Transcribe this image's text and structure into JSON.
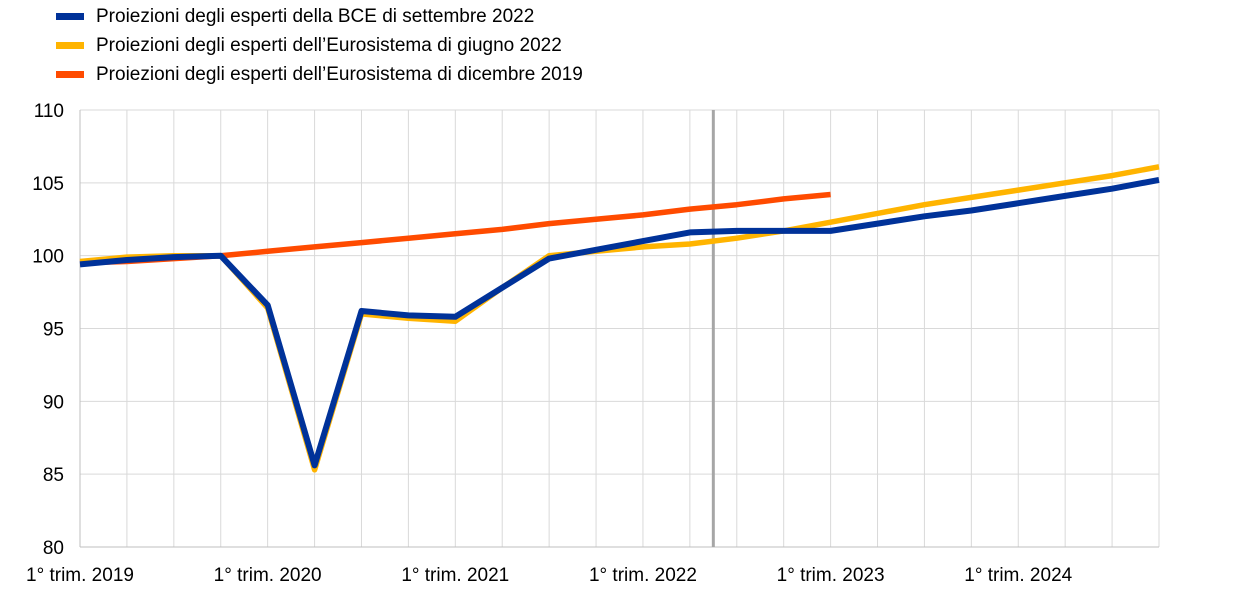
{
  "chart_data": {
    "type": "line",
    "title": "",
    "xlabel": "",
    "ylabel": "",
    "ylim": [
      80,
      110
    ],
    "yticks": [
      80,
      85,
      90,
      95,
      100,
      105,
      110
    ],
    "x_tick_labels": [
      "1° trim. 2019",
      "1° trim. 2020",
      "1° trim. 2021",
      "1° trim. 2022",
      "1° trim. 2023",
      "1° trim. 2024"
    ],
    "periods": [
      "2019Q1",
      "2019Q2",
      "2019Q3",
      "2019Q4",
      "2020Q1",
      "2020Q2",
      "2020Q3",
      "2020Q4",
      "2021Q1",
      "2021Q2",
      "2021Q3",
      "2021Q4",
      "2022Q1",
      "2022Q2",
      "2022Q3",
      "2022Q4",
      "2023Q1",
      "2023Q2",
      "2023Q3",
      "2023Q4",
      "2024Q1",
      "2024Q2",
      "2024Q3",
      "2024Q4"
    ],
    "vertical_marker_period": "2022Q3",
    "grid": true,
    "legend_position": "top-left",
    "series": [
      {
        "name": "Proiezioni degli esperti della BCE di settembre 2022",
        "color": "#003299",
        "values": [
          99.4,
          99.7,
          99.9,
          100.0,
          96.6,
          85.6,
          96.2,
          95.9,
          95.8,
          97.8,
          99.8,
          100.4,
          101.0,
          101.6,
          101.7,
          101.7,
          101.7,
          102.2,
          102.7,
          103.1,
          103.6,
          104.1,
          104.6,
          105.2
        ]
      },
      {
        "name": "Proiezioni degli esperti dell’Eurosistema di giugno 2022",
        "color": "#FFB400",
        "values": [
          99.6,
          99.9,
          100.0,
          100.0,
          96.4,
          85.3,
          96.0,
          95.7,
          95.5,
          97.8,
          100.0,
          100.3,
          100.6,
          100.8,
          101.2,
          101.7,
          102.3,
          102.9,
          103.5,
          104.0,
          104.5,
          105.0,
          105.5,
          106.1
        ]
      },
      {
        "name": "Proiezioni degli esperti dell’Eurosistema di dicembre 2019",
        "color": "#FF4B00",
        "values": [
          99.5,
          99.6,
          99.8,
          100.0,
          100.3,
          100.6,
          100.9,
          101.2,
          101.5,
          101.8,
          102.2,
          102.5,
          102.8,
          103.2,
          103.5,
          103.9,
          104.2,
          null,
          null,
          null,
          null,
          null,
          null,
          null
        ]
      }
    ]
  }
}
